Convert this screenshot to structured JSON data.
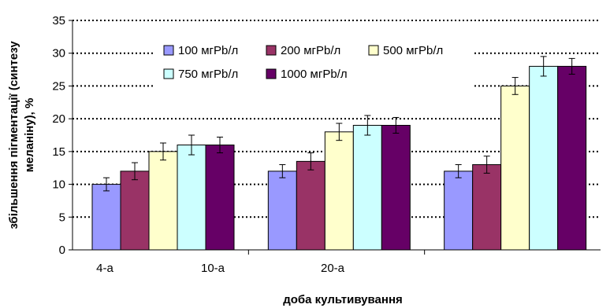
{
  "chart_data": {
    "type": "bar",
    "xlabel": "доба культивування",
    "ylabel_line1": "збільшення пігментації (синтезу",
    "ylabel_line2": "меланіну), %",
    "ylim": [
      0,
      35
    ],
    "yticks": [
      0,
      5,
      10,
      15,
      20,
      25,
      30,
      35
    ],
    "grid": "dotted-horizontal",
    "legend_position": "top-center",
    "categories": [
      "4-а",
      "10-а",
      "20-а"
    ],
    "groups": 3,
    "series": [
      {
        "name": "100 мгPb/л",
        "color": "#9999ff",
        "values": [
          10,
          12,
          12
        ],
        "errors": [
          1,
          1,
          1
        ]
      },
      {
        "name": "200 мгPb/л",
        "color": "#993366",
        "values": [
          12,
          13.5,
          13
        ],
        "errors": [
          1.3,
          1.3,
          1.3
        ]
      },
      {
        "name": "500 мгPb/л",
        "color": "#ffffcc",
        "values": [
          15,
          18,
          25
        ],
        "errors": [
          1.3,
          1.3,
          1.3
        ]
      },
      {
        "name": "750 мгPb/л",
        "color": "#ccffff",
        "values": [
          16,
          19,
          28
        ],
        "errors": [
          1.5,
          1.5,
          1.5
        ]
      },
      {
        "name": "1000 мгPb/л",
        "color": "#660066",
        "values": [
          16,
          19,
          28
        ],
        "errors": [
          1.2,
          1.2,
          1.2
        ]
      }
    ]
  }
}
